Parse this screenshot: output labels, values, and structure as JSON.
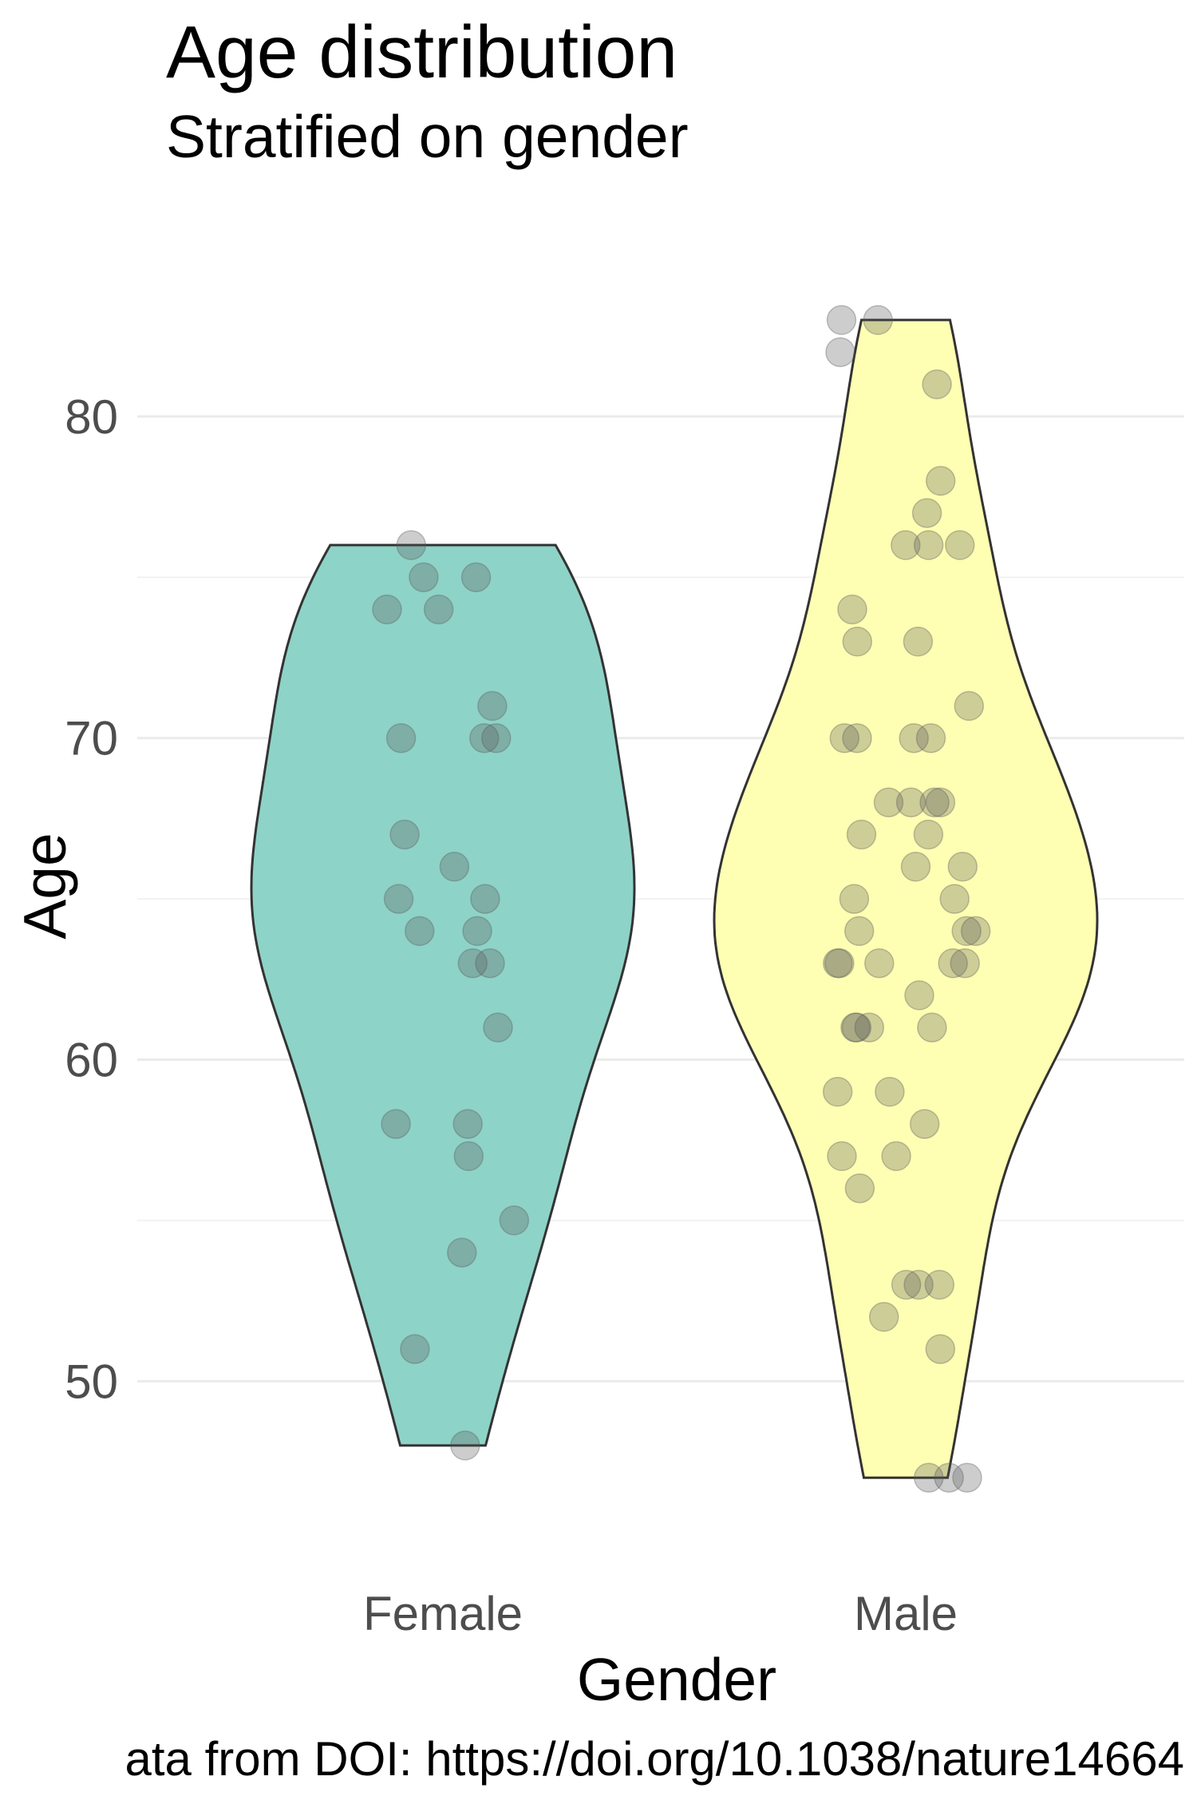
{
  "chart_data": {
    "type": "violin",
    "title": "Age distribution",
    "subtitle": "Stratified on gender",
    "xlabel": "Gender",
    "ylabel": "Age",
    "caption": "ata from DOI: https://doi.org/10.1038/nature14664",
    "categories": [
      "Female",
      "Male"
    ],
    "ylim": [
      44.3,
      86.3
    ],
    "y_ticks": [
      50,
      60,
      70,
      80
    ],
    "grid": true,
    "legend": "none",
    "colors": {
      "Female": "#8ed3c7",
      "Male": "#ffffb3"
    },
    "series": [
      {
        "values": [
          48,
          51,
          54,
          55,
          57,
          58,
          58,
          61,
          63,
          63,
          64,
          64,
          65,
          65,
          66,
          67,
          70,
          70,
          70,
          71,
          74,
          74,
          75,
          75,
          76
        ]
      },
      {
        "values": [
          47,
          47,
          47,
          51,
          52,
          53,
          53,
          53,
          56,
          57,
          57,
          58,
          59,
          59,
          61,
          61,
          61,
          61,
          62,
          63,
          63,
          63,
          63,
          63,
          64,
          64,
          64,
          65,
          65,
          66,
          66,
          67,
          67,
          68,
          68,
          68,
          68,
          70,
          70,
          70,
          70,
          71,
          73,
          73,
          74,
          76,
          76,
          76,
          77,
          78,
          81,
          82,
          83,
          83
        ]
      }
    ]
  }
}
